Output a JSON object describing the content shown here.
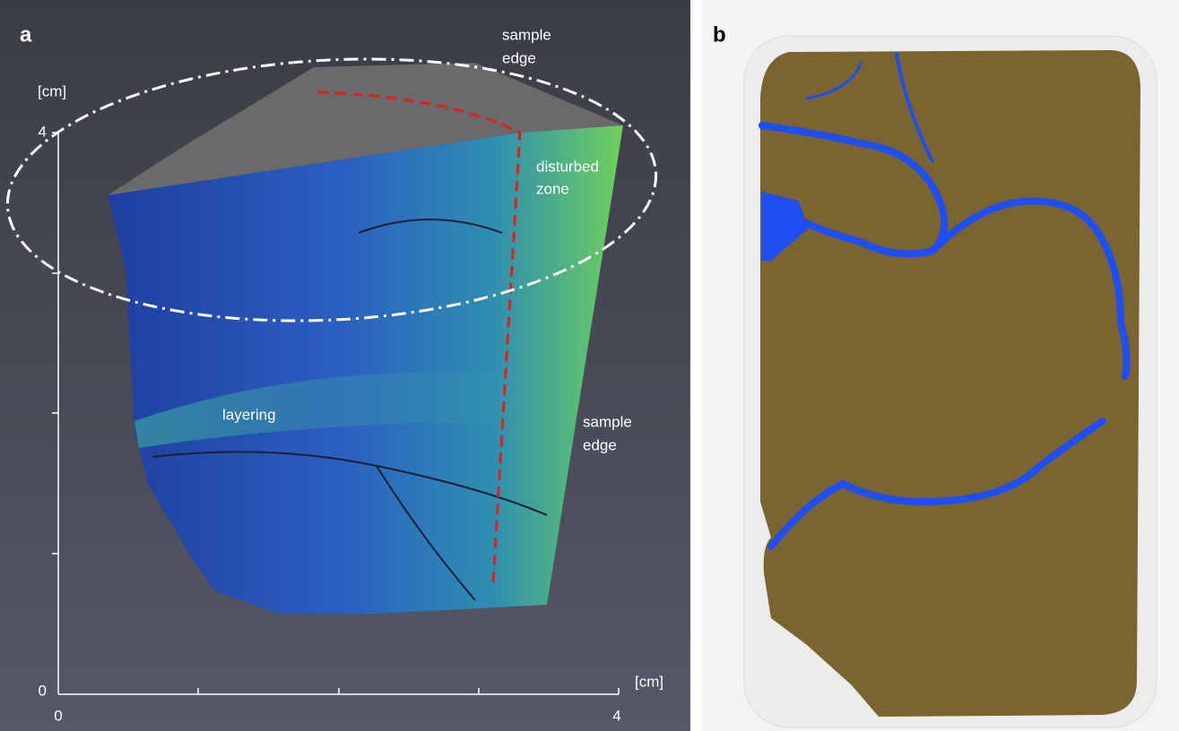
{
  "panels": [
    {
      "label": "a",
      "y_axis": {
        "unit": "[cm]",
        "tick_labels": [
          "4",
          "0"
        ]
      },
      "x_axis": {
        "unit": "[cm]",
        "tick_labels": [
          "0",
          "4"
        ]
      },
      "annotations": [
        {
          "lines": [
            "sample",
            "edge"
          ]
        },
        {
          "lines": [
            "disturbed",
            "zone"
          ]
        },
        {
          "lines": [
            "layering"
          ]
        },
        {
          "lines": [
            "sample",
            "edge"
          ]
        }
      ]
    },
    {
      "label": "b"
    }
  ]
}
